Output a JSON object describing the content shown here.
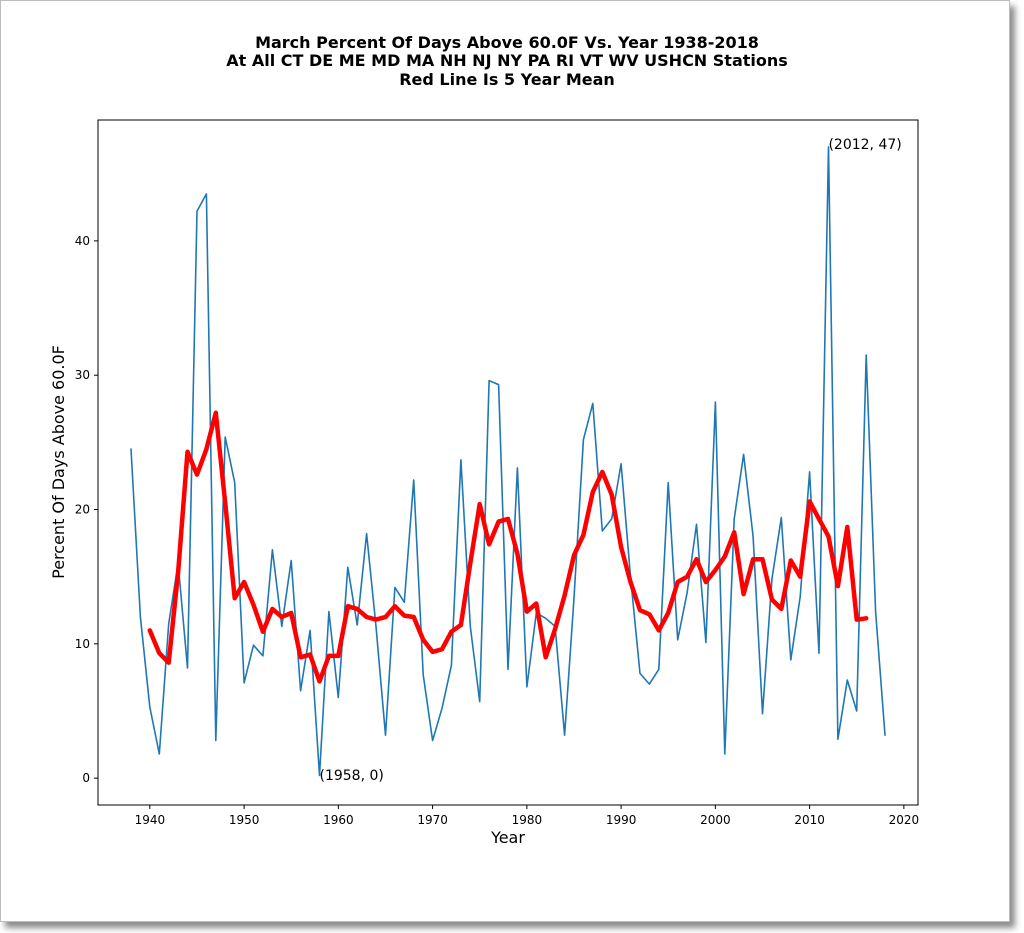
{
  "chart_data": {
    "type": "line",
    "title_lines": [
      "March Percent Of Days Above 60.0F Vs. Year 1938-2018",
      "At All CT DE ME MD MA NH NJ NY PA RI VT WV USHCN Stations",
      "Red Line Is 5 Year Mean"
    ],
    "xlabel": "Year",
    "ylabel": "Percent Of Days Above 60.0F",
    "xlim": [
      1934.5,
      2021.5
    ],
    "ylim": [
      -2,
      49
    ],
    "xticks": [
      1940,
      1950,
      1960,
      1970,
      1980,
      1990,
      2000,
      2010,
      2020
    ],
    "yticks": [
      0,
      10,
      20,
      30,
      40
    ],
    "grid": false,
    "colors": {
      "annual": "#1f77b4",
      "mean": "#ff0000"
    },
    "series": [
      {
        "x": [
          1938,
          1939,
          1940,
          1941,
          1942,
          1943,
          1944,
          1945,
          1946,
          1947,
          1948,
          1949,
          1950,
          1951,
          1952,
          1953,
          1954,
          1955,
          1956,
          1957,
          1958,
          1959,
          1960,
          1961,
          1962,
          1963,
          1964,
          1965,
          1966,
          1967,
          1968,
          1969,
          1970,
          1971,
          1972,
          1973,
          1974,
          1975,
          1976,
          1977,
          1978,
          1979,
          1980,
          1981,
          1982,
          1983,
          1984,
          1985,
          1986,
          1987,
          1988,
          1989,
          1990,
          1991,
          1992,
          1993,
          1994,
          1995,
          1996,
          1997,
          1998,
          1999,
          2000,
          2001,
          2002,
          2003,
          2004,
          2005,
          2006,
          2007,
          2008,
          2009,
          2010,
          2011,
          2012,
          2013,
          2014,
          2015,
          2016,
          2017,
          2018
        ],
        "values": [
          24.5,
          12.0,
          5.3,
          1.8,
          11.5,
          16.0,
          8.2,
          42.2,
          43.5,
          2.8,
          25.4,
          22.0,
          7.1,
          9.9,
          9.1,
          17.0,
          11.3,
          16.2,
          6.5,
          11.0,
          0.2,
          12.4,
          6.0,
          15.7,
          11.4,
          18.2,
          11.3,
          3.2,
          14.2,
          13.1,
          22.2,
          7.7,
          2.8,
          5.2,
          8.4,
          23.7,
          11.3,
          5.7,
          29.6,
          29.3,
          8.1,
          23.1,
          6.8,
          12.3,
          11.9,
          11.3,
          3.2,
          13.4,
          25.2,
          27.9,
          18.4,
          19.3,
          23.4,
          15.0,
          7.8,
          7.0,
          8.1,
          22.0,
          10.3,
          13.8,
          18.9,
          10.1,
          28.0,
          1.8,
          19.3,
          24.1,
          18.0,
          4.8,
          14.8,
          19.4,
          8.8,
          13.5,
          22.8,
          9.3,
          47.0,
          2.9,
          7.3,
          5.0,
          31.5,
          12.4,
          3.2
        ]
      },
      {
        "x": [
          1940,
          1941,
          1942,
          1943,
          1944,
          1945,
          1946,
          1947,
          1948,
          1949,
          1950,
          1951,
          1952,
          1953,
          1954,
          1955,
          1956,
          1957,
          1958,
          1959,
          1960,
          1961,
          1962,
          1963,
          1964,
          1965,
          1966,
          1967,
          1968,
          1969,
          1970,
          1971,
          1972,
          1973,
          1974,
          1975,
          1976,
          1977,
          1978,
          1979,
          1980,
          1981,
          1982,
          1983,
          1984,
          1985,
          1986,
          1987,
          1988,
          1989,
          1990,
          1991,
          1992,
          1993,
          1994,
          1995,
          1996,
          1997,
          1998,
          1999,
          2000,
          2001,
          2002,
          2003,
          2004,
          2005,
          2006,
          2007,
          2008,
          2009,
          2010,
          2011,
          2012,
          2013,
          2014,
          2015,
          2016
        ],
        "values": [
          11.0,
          9.3,
          8.6,
          15.3,
          24.3,
          22.6,
          24.5,
          27.2,
          20.5,
          13.4,
          14.6,
          12.9,
          10.9,
          12.6,
          12.0,
          12.3,
          9.0,
          9.2,
          7.2,
          9.1,
          9.1,
          12.8,
          12.6,
          12.0,
          11.8,
          12.0,
          12.8,
          12.1,
          12.0,
          10.3,
          9.4,
          9.6,
          10.9,
          11.4,
          16.0,
          20.4,
          17.4,
          19.1,
          19.3,
          16.7,
          12.4,
          13.0,
          9.0,
          11.1,
          13.6,
          16.6,
          18.1,
          21.3,
          22.8,
          21.1,
          17.2,
          14.6,
          12.5,
          12.2,
          11.0,
          12.3,
          14.6,
          15.0,
          16.3,
          14.6,
          15.5,
          16.5,
          18.3,
          13.7,
          16.3,
          16.3,
          13.3,
          12.6,
          16.2,
          15.0,
          20.6,
          19.3,
          18.0,
          14.3,
          18.7,
          11.8,
          11.9
        ]
      }
    ],
    "annotations": [
      {
        "x": 1958,
        "y": 0,
        "text": "(1958, 0)"
      },
      {
        "x": 2012,
        "y": 47,
        "text": "(2012, 47)"
      }
    ]
  }
}
